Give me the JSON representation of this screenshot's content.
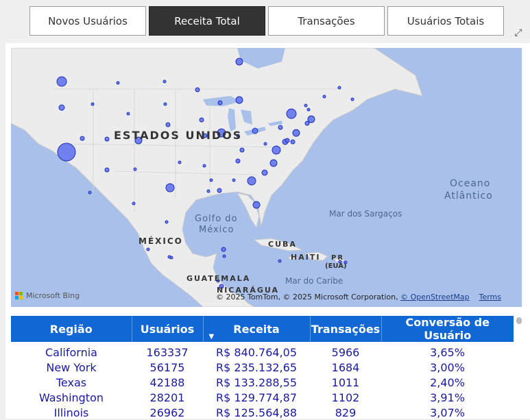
{
  "tabs": [
    {
      "label": "Novos Usuários",
      "active": false
    },
    {
      "label": "Receita Total",
      "active": true
    },
    {
      "label": "Transações",
      "active": false
    },
    {
      "label": "Usuários Totais",
      "active": false
    }
  ],
  "map": {
    "labels": {
      "usa": "ESTADOS UNIDOS",
      "mexico": "MÉXICO",
      "cuba": "CUBA",
      "haiti": "HAITI",
      "pr": "PR",
      "pr_sub": "(EUA)",
      "guatemala": "GUATEMALA",
      "nicaragua": "NICARÁGUA",
      "gulf_1": "Golfo do",
      "gulf_2": "México",
      "ocean_1": "Oceano",
      "ocean_2": "Atlântico",
      "sargasso": "Mar dos Sargaços",
      "caribbean": "Mar do Caribe"
    },
    "attribution": {
      "bing": "Microsoft Bing",
      "copyright": "© 2025 TomTom, © 2025 Microsoft Corporation,",
      "osm": "© OpenStreetMap",
      "terms": "Terms"
    },
    "colors": {
      "water": "#a9c1ea",
      "land": "#ececec",
      "bubble": "#5b6ff0",
      "bubble_stroke": "#1e2fb8"
    }
  },
  "table": {
    "headers": [
      "Região",
      "Usuários",
      "Receita",
      "Transações",
      "Conversão de Usuário"
    ],
    "rows": [
      {
        "regiao": "California",
        "usuarios": "163337",
        "receita": "R$ 840.764,05",
        "transacoes": "5966",
        "conversao": "3,65%"
      },
      {
        "regiao": "New York",
        "usuarios": "56175",
        "receita": "R$ 235.132,65",
        "transacoes": "1684",
        "conversao": "3,00%"
      },
      {
        "regiao": "Texas",
        "usuarios": "42188",
        "receita": "R$ 133.288,55",
        "transacoes": "1011",
        "conversao": "2,40%"
      },
      {
        "regiao": "Washington",
        "usuarios": "28201",
        "receita": "R$ 129.774,87",
        "transacoes": "1102",
        "conversao": "3,91%"
      },
      {
        "regiao": "Illinois",
        "usuarios": "26962",
        "receita": "R$ 125.564,88",
        "transacoes": "829",
        "conversao": "3,07%"
      }
    ]
  }
}
